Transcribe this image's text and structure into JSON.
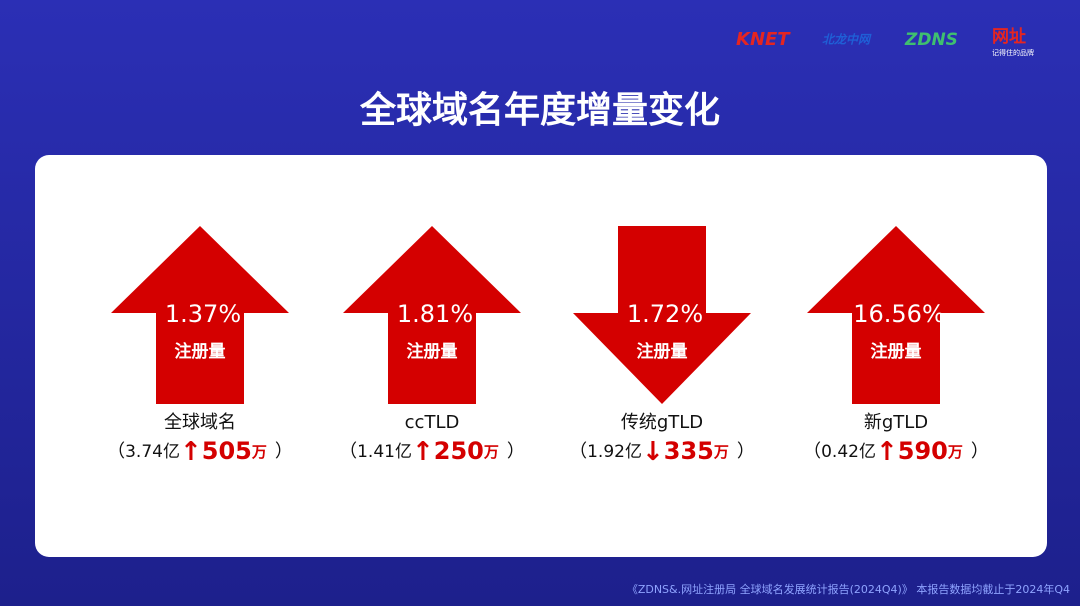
{
  "logos": {
    "knet": "KNET",
    "knet_cn": "北龙中网",
    "zdns": "ZDNS",
    "wangzhi": "网址",
    "wangzhi_slogan": "记得住的品牌"
  },
  "title": "全球域名年度增量变化",
  "brackets": [
    "（",
    "）"
  ],
  "items": [
    {
      "percent": "1.37%",
      "label": "注册量",
      "name": "全球域名",
      "total": "3.74亿",
      "arrow": "↑",
      "change": "505",
      "unit": "万",
      "direction": "up"
    },
    {
      "percent": "1.81%",
      "label": "注册量",
      "name": "ccTLD",
      "total": "1.41亿",
      "arrow": "↑",
      "change": "250",
      "unit": "万",
      "direction": "up"
    },
    {
      "percent": "1.72%",
      "label": "注册量",
      "name": "传统gTLD",
      "total": "1.92亿",
      "arrow": "↓",
      "change": "335",
      "unit": "万",
      "direction": "down"
    },
    {
      "percent": "16.56%",
      "label": "注册量",
      "name": "新gTLD",
      "total": "0.42亿",
      "arrow": "↑",
      "change": "590",
      "unit": "万",
      "direction": "up"
    }
  ],
  "footer": "《ZDNS&.网址注册局 全球域名发展统计报告(2024Q4)》 本报告数据均截止于2024年Q4"
}
